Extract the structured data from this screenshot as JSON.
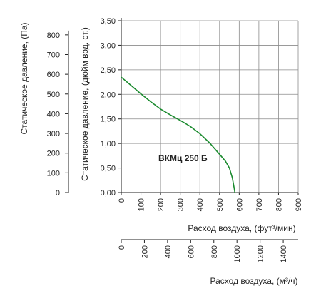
{
  "chart_data": {
    "type": "line",
    "series": [
      {
        "name": "ВКМц 250 Б",
        "color": "#1a8a2e",
        "x": [
          0,
          50,
          100,
          150,
          200,
          250,
          300,
          350,
          400,
          450,
          500,
          530,
          550,
          565,
          575,
          578
        ],
        "y": [
          2.35,
          2.18,
          2.01,
          1.85,
          1.7,
          1.58,
          1.47,
          1.35,
          1.2,
          1.01,
          0.78,
          0.64,
          0.5,
          0.3,
          0.08,
          0.0
        ]
      }
    ],
    "xlabel": "Расход воздуха, (фут³/мин)",
    "xlim": [
      0,
      900
    ],
    "xticks": [
      "0",
      "100",
      "200",
      "300",
      "400",
      "500",
      "600",
      "700",
      "800",
      "900"
    ],
    "x2label": "Расход воздуха, (м³/ч)",
    "x2lim": [
      0,
      1529
    ],
    "x2ticks": [
      "0",
      "200",
      "400",
      "600",
      "800",
      "1000",
      "1200",
      "1400"
    ],
    "ylabel": "Статическое давление, (дюйм вод. ст.)",
    "ylim": [
      0,
      3.5
    ],
    "yticks": [
      "0,00",
      "0,50",
      "1,00",
      "1,50",
      "2,00",
      "2,50",
      "3,00",
      "3,50"
    ],
    "y2label": "Статическое давление, (Па)",
    "y2lim": [
      0,
      871.8
    ],
    "y2ticks": [
      "0",
      "100",
      "200",
      "300",
      "400",
      "500",
      "600",
      "700",
      "800"
    ],
    "grid": true,
    "gridColor": "#8c8c8c"
  }
}
